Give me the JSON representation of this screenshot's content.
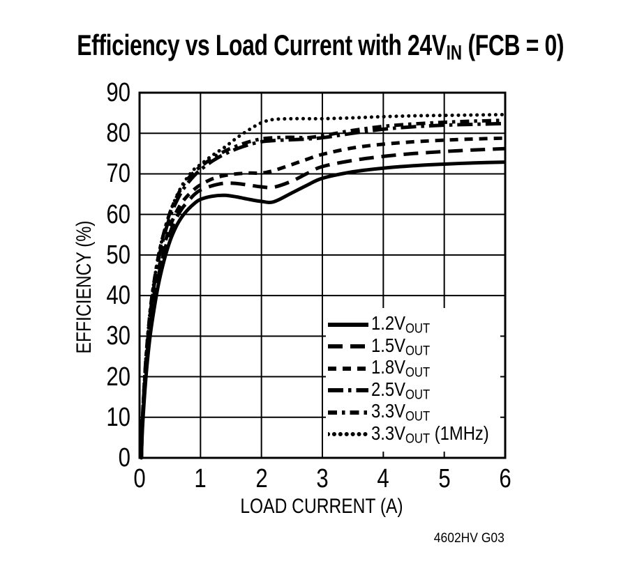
{
  "title": {
    "pre": "Efficiency vs Load Current with 24V",
    "sub": "IN",
    "post": " (FCB = 0)"
  },
  "footer": "4602HV G03",
  "colors": {
    "ink": "#000000",
    "background": "#ffffff"
  },
  "chart_data": {
    "type": "line",
    "title": "Efficiency vs Load Current with 24VIN (FCB = 0)",
    "xlabel": "LOAD CURRENT (A)",
    "ylabel": "EFFICIENCY (%)",
    "xlim": [
      0,
      6
    ],
    "ylim": [
      0,
      90
    ],
    "x_ticks": [
      0,
      1,
      2,
      3,
      4,
      5,
      6
    ],
    "y_ticks": [
      0,
      10,
      20,
      30,
      40,
      50,
      60,
      70,
      80,
      90
    ],
    "grid": true,
    "legend_position": "lower right",
    "x": [
      0.03,
      0.05,
      0.1,
      0.15,
      0.2,
      0.3,
      0.4,
      0.5,
      0.6,
      0.7,
      0.8,
      0.9,
      1.0,
      1.2,
      1.4,
      1.6,
      1.8,
      2.0,
      2.2,
      2.5,
      2.75,
      3.0,
      3.5,
      4.0,
      4.5,
      5.0,
      5.5,
      6.0
    ],
    "series": [
      {
        "name": "1.2V",
        "sub": "OUT",
        "suffix": "",
        "style": "solid",
        "values": [
          0,
          8,
          19,
          27,
          33,
          42,
          48.5,
          53.5,
          57,
          59.5,
          61.3,
          62.7,
          63.7,
          64.5,
          64.7,
          64.3,
          63.7,
          63.2,
          63.1,
          65.3,
          67.2,
          68.9,
          70.5,
          71.4,
          72.0,
          72.4,
          72.7,
          72.9
        ]
      },
      {
        "name": "1.5V",
        "sub": "OUT",
        "suffix": "",
        "style": "longdash",
        "values": [
          0,
          9,
          20.5,
          28.5,
          35,
          44,
          50.5,
          55.5,
          59,
          61.5,
          63.3,
          64.9,
          66.0,
          67.1,
          67.7,
          67.6,
          67.2,
          66.8,
          66.7,
          68.2,
          70.1,
          71.8,
          73.3,
          74.3,
          75.0,
          75.5,
          75.9,
          76.2
        ]
      },
      {
        "name": "1.8V",
        "sub": "OUT",
        "suffix": "",
        "style": "dash",
        "values": [
          0,
          9.5,
          21.5,
          30,
          36.5,
          45.5,
          52,
          57,
          60.5,
          63,
          64.8,
          66.2,
          67.3,
          68.8,
          69.6,
          70.0,
          70.2,
          70.2,
          70.8,
          72.3,
          73.6,
          74.8,
          76.4,
          77.3,
          77.9,
          78.3,
          78.6,
          78.8
        ]
      },
      {
        "name": "2.5V",
        "sub": "OUT",
        "suffix": "",
        "style": "dashdot_long",
        "values": [
          0,
          10,
          23,
          31.5,
          38.5,
          48,
          54.5,
          59.5,
          63,
          65.8,
          67.9,
          69.6,
          71.0,
          73.2,
          74.9,
          76.2,
          77.2,
          77.9,
          78.2,
          78.4,
          78.6,
          78.9,
          80.0,
          81.0,
          81.6,
          82.0,
          82.2,
          82.4
        ]
      },
      {
        "name": "3.3V",
        "sub": "OUT",
        "suffix": "",
        "style": "dashdot",
        "values": [
          0,
          10.5,
          23.5,
          32.5,
          39.5,
          49,
          55.5,
          60.5,
          64,
          66.8,
          68.9,
          70.5,
          71.8,
          73.9,
          75.6,
          76.9,
          77.9,
          78.6,
          78.9,
          79.0,
          78.9,
          79.4,
          80.7,
          81.7,
          82.3,
          82.7,
          83.0,
          83.2
        ]
      },
      {
        "name": "3.3V",
        "sub": "OUT",
        "suffix": " (1MHz)",
        "style": "dotted",
        "values": [
          0,
          10.5,
          23.5,
          32.5,
          39.5,
          49,
          55.5,
          60.5,
          64.2,
          67.2,
          69.4,
          71.2,
          72.3,
          74.6,
          76.6,
          78.9,
          80.9,
          82.6,
          83.4,
          83.6,
          83.6,
          83.6,
          83.8,
          84.1,
          84.3,
          84.4,
          84.5,
          84.6
        ]
      }
    ]
  }
}
